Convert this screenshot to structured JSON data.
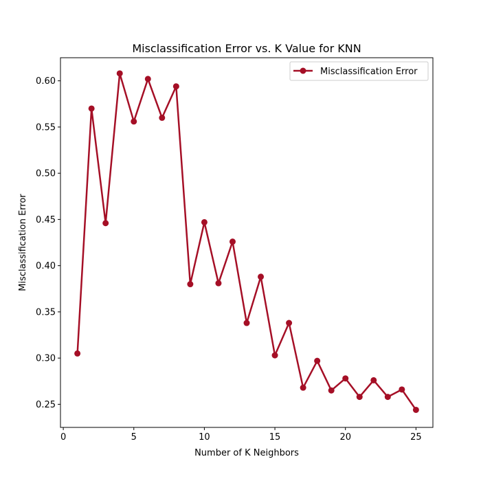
{
  "chart_data": {
    "type": "line",
    "title": "Misclassification Error vs. K Value for KNN",
    "xlabel": "Number of K Neighbors",
    "ylabel": "Misclassification Error",
    "xlim": [
      -0.2,
      26.2
    ],
    "ylim": [
      0.225,
      0.625
    ],
    "xticks": [
      0,
      5,
      10,
      15,
      20,
      25
    ],
    "xtick_labels": [
      "0",
      "5",
      "10",
      "15",
      "20",
      "25"
    ],
    "yticks": [
      0.25,
      0.3,
      0.35,
      0.4,
      0.45,
      0.5,
      0.55,
      0.6
    ],
    "ytick_labels": [
      "0.25",
      "0.30",
      "0.35",
      "0.40",
      "0.45",
      "0.50",
      "0.55",
      "0.60"
    ],
    "grid": false,
    "legend_position": "top-right",
    "series": [
      {
        "name": "Misclassification Error",
        "color": "#a50f26",
        "marker": "circle",
        "x": [
          1,
          2,
          3,
          4,
          5,
          6,
          7,
          8,
          9,
          10,
          11,
          12,
          13,
          14,
          15,
          16,
          17,
          18,
          19,
          20,
          21,
          22,
          23,
          24,
          25
        ],
        "y": [
          0.305,
          0.57,
          0.446,
          0.608,
          0.556,
          0.602,
          0.56,
          0.594,
          0.38,
          0.447,
          0.381,
          0.426,
          0.338,
          0.388,
          0.303,
          0.338,
          0.268,
          0.297,
          0.265,
          0.278,
          0.258,
          0.276,
          0.258,
          0.266,
          0.244
        ]
      }
    ]
  }
}
